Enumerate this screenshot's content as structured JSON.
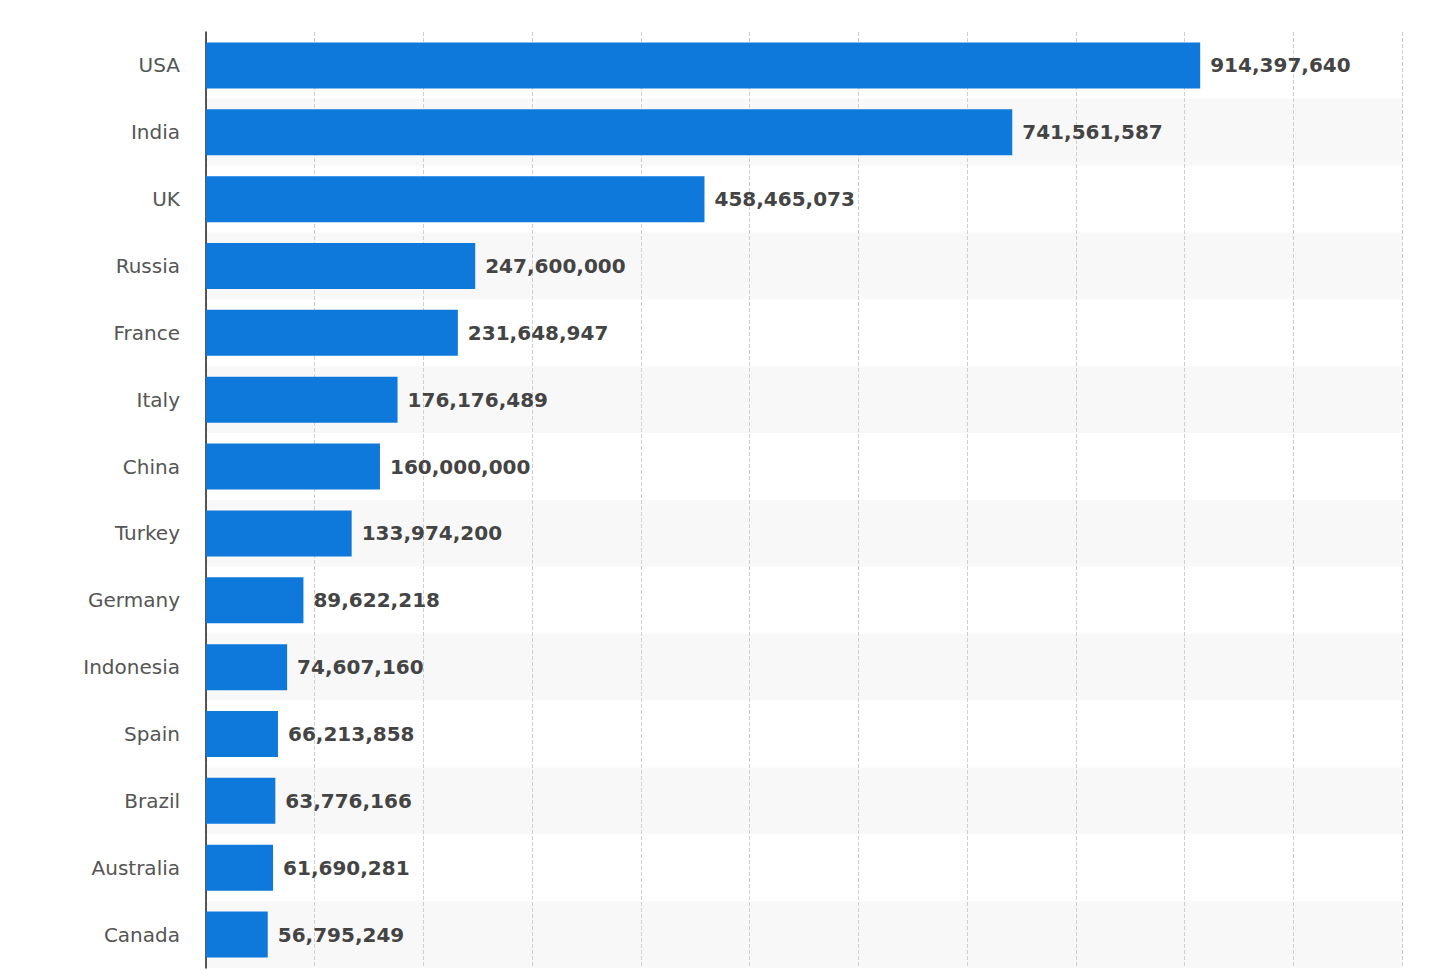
{
  "chart_data": {
    "type": "bar",
    "orientation": "horizontal",
    "categories": [
      "USA",
      "India",
      "UK",
      "Russia",
      "France",
      "Italy",
      "China",
      "Turkey",
      "Germany",
      "Indonesia",
      "Spain",
      "Brazil",
      "Australia",
      "Canada"
    ],
    "values": [
      914397640,
      741561587,
      458465073,
      247600000,
      231648947,
      176176489,
      160000000,
      133974200,
      89622218,
      74607160,
      66213858,
      63776166,
      61690281,
      56795249
    ],
    "value_labels": [
      "914,397,640",
      "741,561,587",
      "458,465,073",
      "247,600,000",
      "231,648,947",
      "176,176,489",
      "160,000,000",
      "133,974,200",
      "89,622,218",
      "74,607,160",
      "66,213,858",
      "63,776,166",
      "61,690,281",
      "56,795,249"
    ],
    "color": "#0f78db",
    "xlim": [
      0,
      1100000000
    ],
    "xticks": [
      0,
      100000000,
      200000000,
      300000000,
      400000000,
      500000000,
      600000000,
      700000000,
      800000000,
      900000000,
      1000000000,
      1100000000
    ],
    "grid": true,
    "data_labels": true,
    "tick_labels": false
  }
}
